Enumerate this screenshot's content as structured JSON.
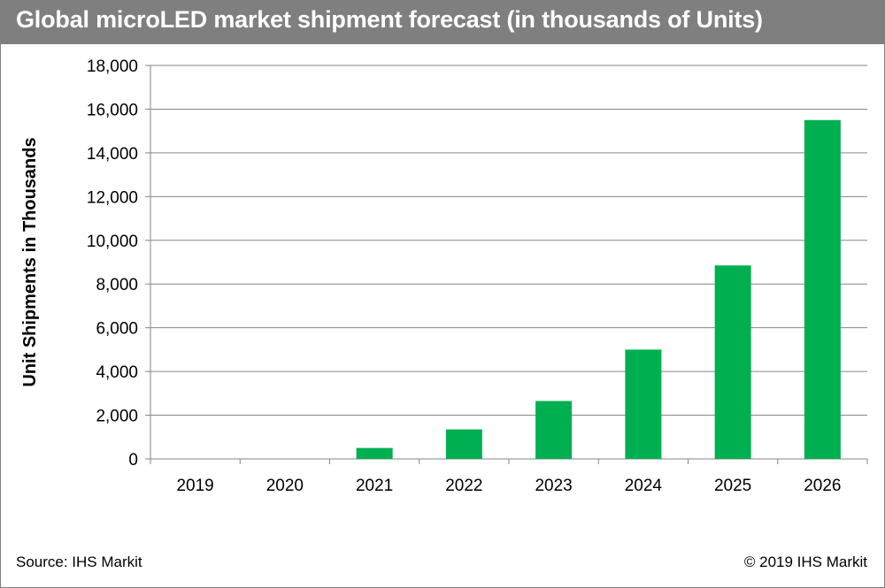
{
  "header": {
    "title": "Global microLED market shipment forecast (in thousands of Units)"
  },
  "footer": {
    "source": "Source: IHS Markit",
    "copyright": "© 2019 IHS Markit"
  },
  "colors": {
    "title_bar": "#7f7f7f",
    "bar": "#00b050",
    "gridline": "#868686"
  },
  "chart_data": {
    "type": "bar",
    "title": "Global microLED market shipment forecast (in thousands of Units)",
    "xlabel": "",
    "ylabel": "Unit Shipments in Thousands",
    "categories": [
      "2019",
      "2020",
      "2021",
      "2022",
      "2023",
      "2024",
      "2025",
      "2026"
    ],
    "values": [
      0,
      0,
      500,
      1350,
      2650,
      5000,
      8850,
      15500
    ],
    "ylim": [
      0,
      18000
    ],
    "yticks": [
      0,
      2000,
      4000,
      6000,
      8000,
      10000,
      12000,
      14000,
      16000,
      18000
    ],
    "ytick_labels": [
      "0",
      "2,000",
      "4,000",
      "6,000",
      "8,000",
      "10,000",
      "12,000",
      "14,000",
      "16,000",
      "18,000"
    ],
    "grid": true,
    "legend": "none"
  }
}
